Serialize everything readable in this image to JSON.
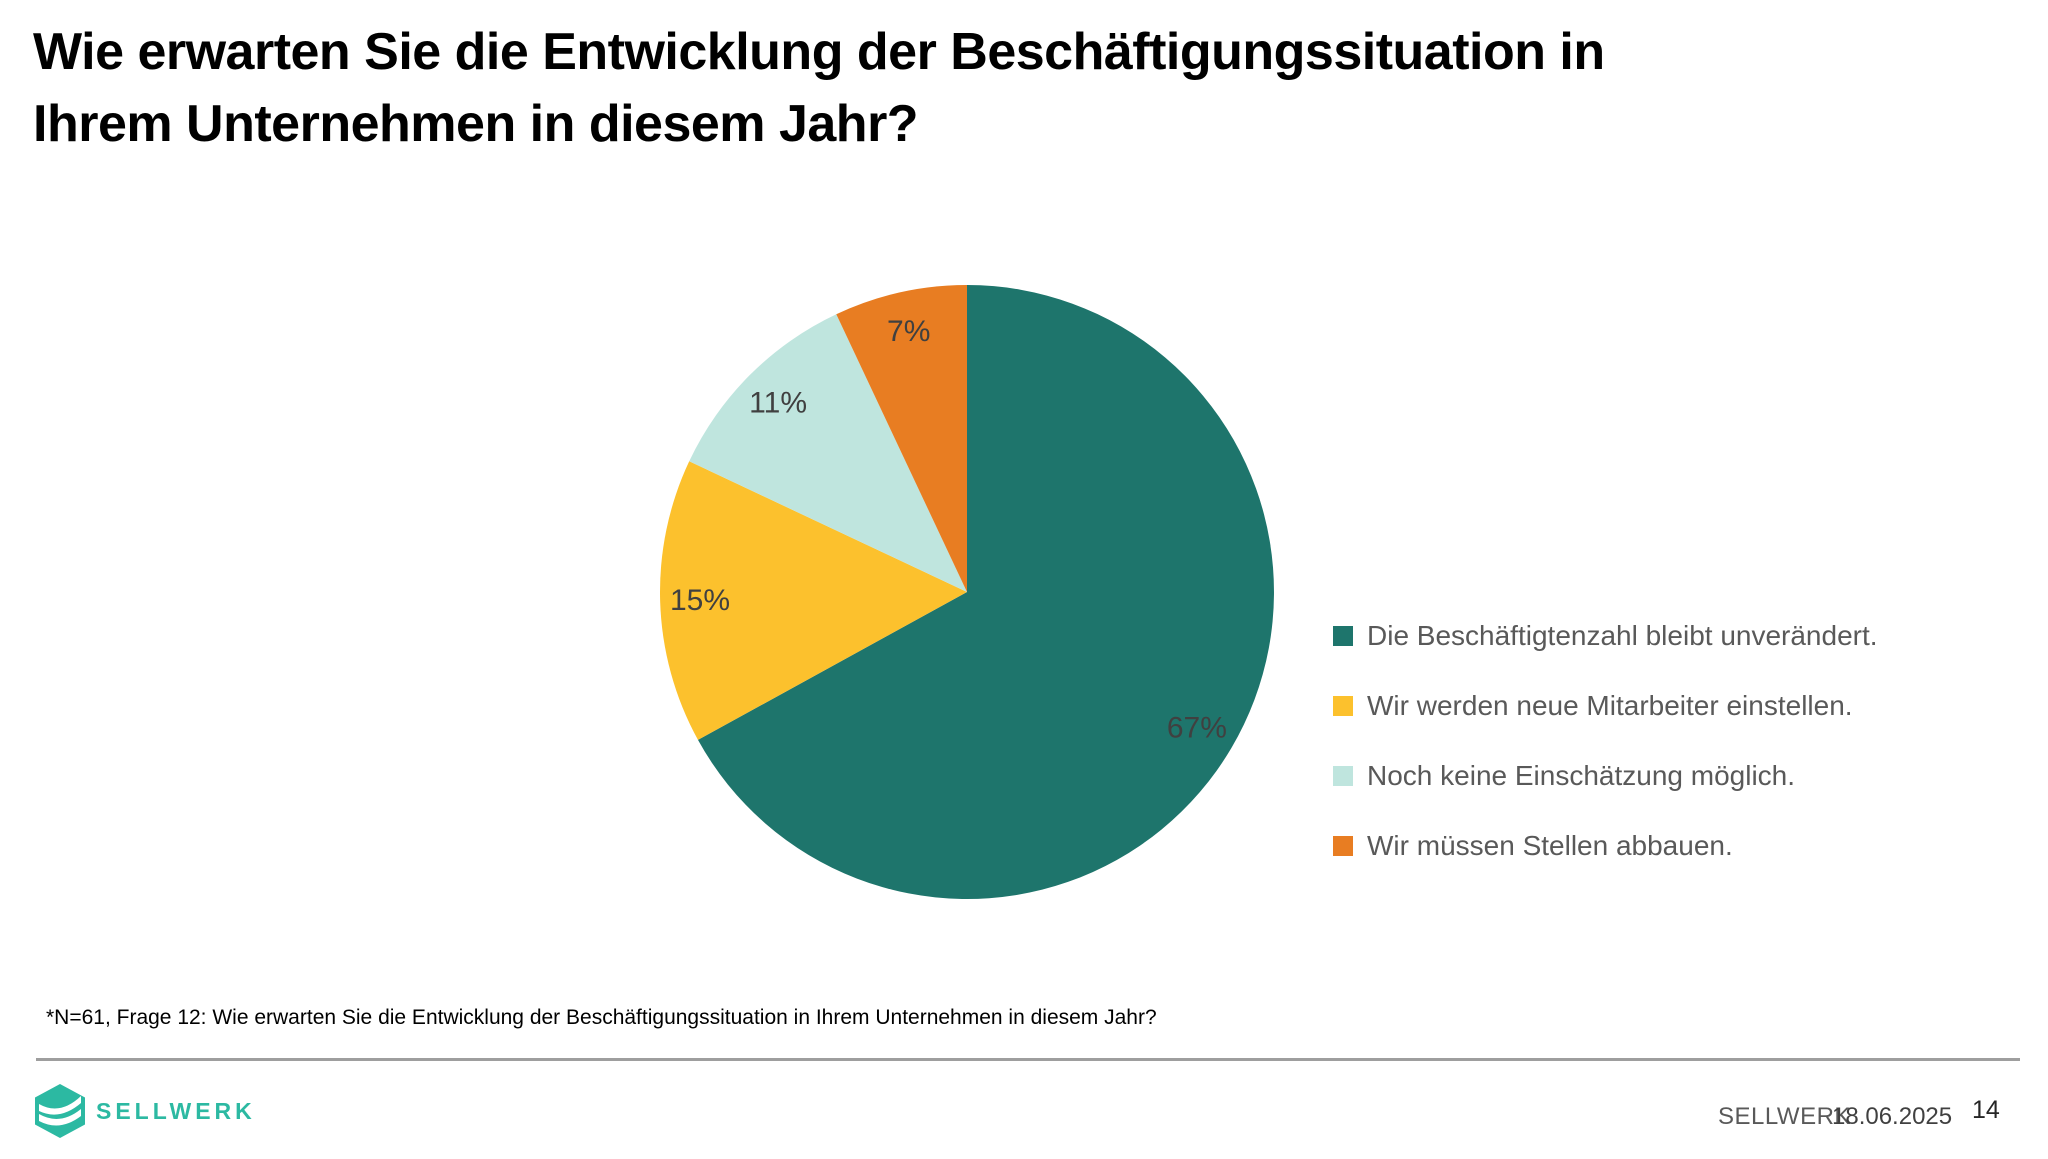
{
  "title": {
    "lines": [
      "Wie erwarten Sie die Entwicklung der Beschäftigungssituation in",
      "Ihrem Unternehmen in diesem Jahr?"
    ]
  },
  "chart_data": {
    "type": "pie",
    "title": "Wie erwarten Sie die Entwicklung der Beschäftigungssituation in Ihrem Unternehmen in diesem Jahr?",
    "unit": "%",
    "start_angle_deg": 0,
    "direction": "clockwise",
    "legend_position": "right",
    "label_color": "#404040",
    "slices": [
      {
        "label": "Die Beschäftigtenzahl bleibt unverändert.",
        "value": 67,
        "data_label": "67%",
        "color": "#1E756C"
      },
      {
        "label": "Wir werden neue Mitarbeiter einstellen.",
        "value": 15,
        "data_label": "15%",
        "color": "#FCC12D"
      },
      {
        "label": "Noch keine Einschätzung möglich.",
        "value": 11,
        "data_label": "11%",
        "color": "#BFE5DE"
      },
      {
        "label": "Wir müssen Stellen abbauen.",
        "value": 7,
        "data_label": "7%",
        "color": "#E87D22"
      }
    ]
  },
  "footnote": "*N=61, Frage 12: Wie erwarten Sie die Entwicklung der Beschäftigungssituation in Ihrem Unternehmen in diesem Jahr?",
  "footer": {
    "wordmark": "SELLWERK",
    "brand_color": "#2CB9A2",
    "source": "SELLWERK",
    "date": "18.06.2025",
    "page": "14"
  }
}
